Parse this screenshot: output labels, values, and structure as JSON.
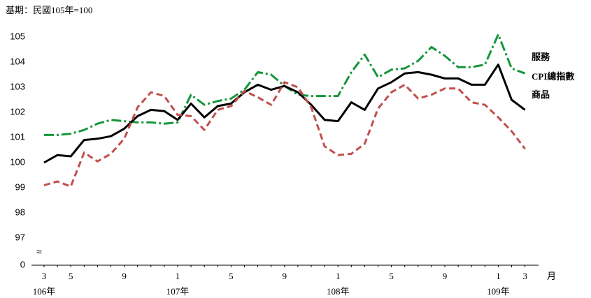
{
  "chart_data": {
    "type": "line",
    "subtitle": "基期：民國105年=100",
    "x_unit": "月",
    "categories": [
      "3",
      null,
      "5",
      null,
      null,
      null,
      "9",
      null,
      null,
      null,
      "1",
      null,
      null,
      null,
      "5",
      null,
      null,
      null,
      "9",
      null,
      null,
      null,
      "1",
      null,
      null,
      null,
      "5",
      null,
      null,
      null,
      "9",
      null,
      null,
      null,
      "1",
      null,
      "3"
    ],
    "year_labels": [
      {
        "label": "106年",
        "index": 0
      },
      {
        "label": "107年",
        "index": 10
      },
      {
        "label": "108年",
        "index": 22
      },
      {
        "label": "109年",
        "index": 34
      }
    ],
    "ylim": [
      97,
      105
    ],
    "axis_break": true,
    "yticks": [
      0,
      97,
      98,
      99,
      100,
      101,
      102,
      103,
      104,
      105
    ],
    "series": [
      {
        "name": "服務",
        "color": "#15963a",
        "dash": "14,4,3,4",
        "values": [
          101.1,
          101.1,
          101.15,
          101.3,
          101.55,
          101.7,
          101.65,
          101.6,
          101.6,
          101.55,
          101.6,
          102.7,
          102.3,
          102.45,
          102.55,
          102.9,
          103.6,
          103.5,
          103.05,
          102.7,
          102.65,
          102.65,
          102.65,
          103.6,
          104.3,
          103.4,
          103.7,
          103.75,
          104.05,
          104.6,
          104.25,
          103.8,
          103.8,
          103.9,
          105.1,
          103.75,
          103.55
        ]
      },
      {
        "name": "CPI總指數",
        "color": "#000000",
        "dash": "none",
        "values": [
          100.0,
          100.3,
          100.25,
          100.9,
          100.95,
          101.05,
          101.35,
          101.85,
          102.1,
          102.05,
          101.7,
          102.35,
          101.8,
          102.25,
          102.35,
          102.8,
          103.1,
          102.9,
          103.05,
          102.8,
          102.3,
          101.7,
          101.65,
          102.4,
          102.1,
          102.95,
          103.2,
          103.55,
          103.6,
          103.5,
          103.35,
          103.35,
          103.1,
          103.1,
          103.9,
          102.5,
          102.1
        ]
      },
      {
        "name": "商品",
        "color": "#c0504d",
        "dash": "9,5",
        "values": [
          99.1,
          99.25,
          99.05,
          100.4,
          100.05,
          100.35,
          100.95,
          102.2,
          102.8,
          102.65,
          101.9,
          101.85,
          101.3,
          102.1,
          102.25,
          102.85,
          102.6,
          102.3,
          103.2,
          103.0,
          102.2,
          100.65,
          100.3,
          100.35,
          100.75,
          102.15,
          102.8,
          103.1,
          102.55,
          102.7,
          102.95,
          102.95,
          102.4,
          102.3,
          101.8,
          101.25,
          100.55
        ]
      }
    ]
  }
}
